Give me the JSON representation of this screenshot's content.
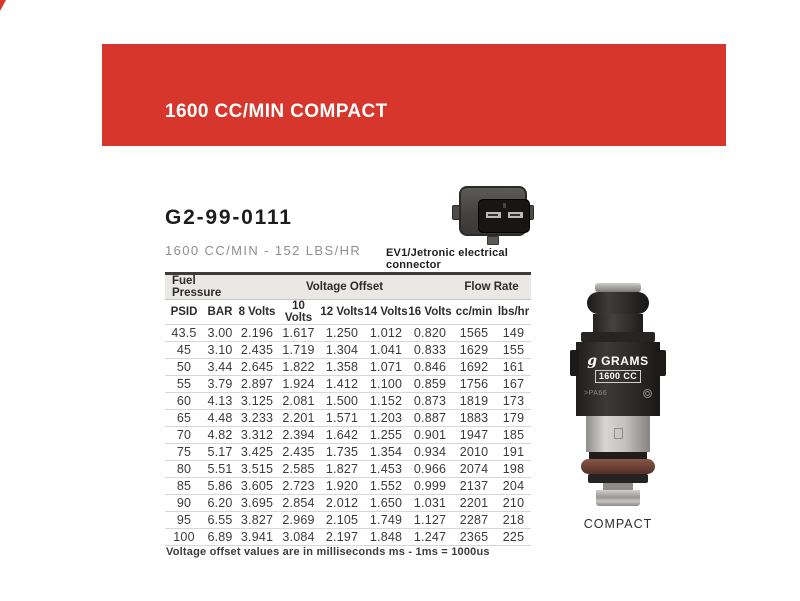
{
  "page": {
    "accent_color": "#d6362c",
    "banner_title": "1600 CC/MIN COMPACT"
  },
  "product": {
    "part_number": "G2-99-0111",
    "subtitle": "1600 CC/MIN - 152 LBS/HR",
    "connector_label": "EV1/Jetronic electrical connector",
    "style_label": "COMPACT"
  },
  "injector": {
    "brand": "GRAMS",
    "model": "1600 CC",
    "logo_glyph": "g",
    "marking": ">PA66"
  },
  "table": {
    "groups": [
      {
        "label": "Fuel Pressure"
      },
      {
        "label": "Voltage Offset"
      },
      {
        "label": "Flow Rate"
      }
    ],
    "columns": [
      "PSID",
      "BAR",
      "8 Volts",
      "10 Volts",
      "12 Volts",
      "14 Volts",
      "16 Volts",
      "cc/min",
      "lbs/hr"
    ],
    "rows": [
      [
        "43.5",
        "3.00",
        "2.196",
        "1.617",
        "1.250",
        "1.012",
        "0.820",
        "1565",
        "149"
      ],
      [
        "45",
        "3.10",
        "2.435",
        "1.719",
        "1.304",
        "1.041",
        "0.833",
        "1629",
        "155"
      ],
      [
        "50",
        "3.44",
        "2.645",
        "1.822",
        "1.358",
        "1.071",
        "0.846",
        "1692",
        "161"
      ],
      [
        "55",
        "3.79",
        "2.897",
        "1.924",
        "1.412",
        "1.100",
        "0.859",
        "1756",
        "167"
      ],
      [
        "60",
        "4.13",
        "3.125",
        "2.081",
        "1.500",
        "1.152",
        "0.873",
        "1819",
        "173"
      ],
      [
        "65",
        "4.48",
        "3.233",
        "2.201",
        "1.571",
        "1.203",
        "0.887",
        "1883",
        "179"
      ],
      [
        "70",
        "4.82",
        "3.312",
        "2.394",
        "1.642",
        "1.255",
        "0.901",
        "1947",
        "185"
      ],
      [
        "75",
        "5.17",
        "3.425",
        "2.435",
        "1.735",
        "1.354",
        "0.934",
        "2010",
        "191"
      ],
      [
        "80",
        "5.51",
        "3.515",
        "2.585",
        "1.827",
        "1.453",
        "0.966",
        "2074",
        "198"
      ],
      [
        "85",
        "5.86",
        "3.605",
        "2.723",
        "1.920",
        "1.552",
        "0.999",
        "2137",
        "204"
      ],
      [
        "90",
        "6.20",
        "3.695",
        "2.854",
        "2.012",
        "1.650",
        "1.031",
        "2201",
        "210"
      ],
      [
        "95",
        "6.55",
        "3.827",
        "2.969",
        "2.105",
        "1.749",
        "1.127",
        "2287",
        "218"
      ],
      [
        "100",
        "6.89",
        "3.941",
        "3.084",
        "2.197",
        "1.848",
        "1.247",
        "2365",
        "225"
      ]
    ]
  },
  "footnote": "Voltage offset values are in milliseconds ms - 1ms = 1000us"
}
